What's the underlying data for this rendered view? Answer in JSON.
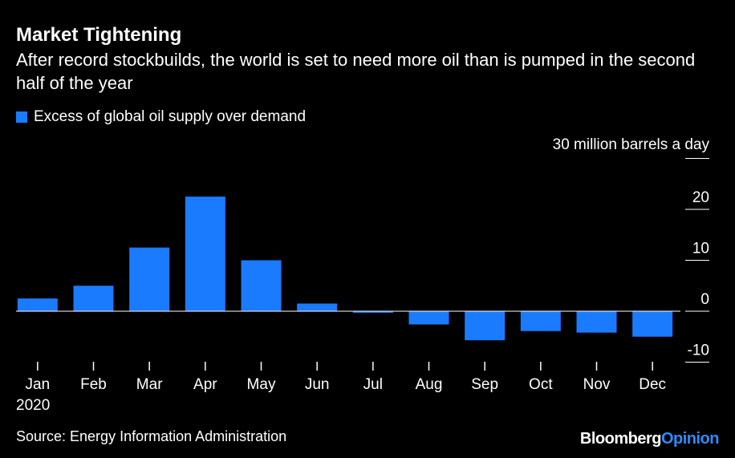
{
  "title": "Market Tightening",
  "subtitle": "After record stockbuilds, the world is set to need more oil than is pumped in the second half of the year",
  "source": "Source: Energy Information Administration",
  "brand": {
    "part1": "Bloomberg",
    "part2": "Opinion"
  },
  "colors": {
    "background": "#000000",
    "bar": "#1a7bff",
    "text": "#ffffff",
    "axis": "#ffffff",
    "brand_accent": "#2f8cff"
  },
  "chart_data": {
    "type": "bar",
    "title": "Market Tightening",
    "unit_label": "30 million barrels a day",
    "year_label": "2020",
    "categories": [
      "Jan",
      "Feb",
      "Mar",
      "Apr",
      "May",
      "Jun",
      "Jul",
      "Aug",
      "Sep",
      "Oct",
      "Nov",
      "Dec"
    ],
    "series": [
      {
        "name": "Excess of global oil supply over demand",
        "values": [
          2.5,
          5.0,
          12.5,
          22.5,
          10.0,
          1.5,
          -0.3,
          -2.6,
          -5.7,
          -3.9,
          -4.2,
          -5.0
        ]
      }
    ],
    "yticks": [
      20,
      10,
      0,
      -10
    ],
    "ylim": [
      -12.5,
      30
    ],
    "grid": false,
    "legend_position": "top-left"
  }
}
